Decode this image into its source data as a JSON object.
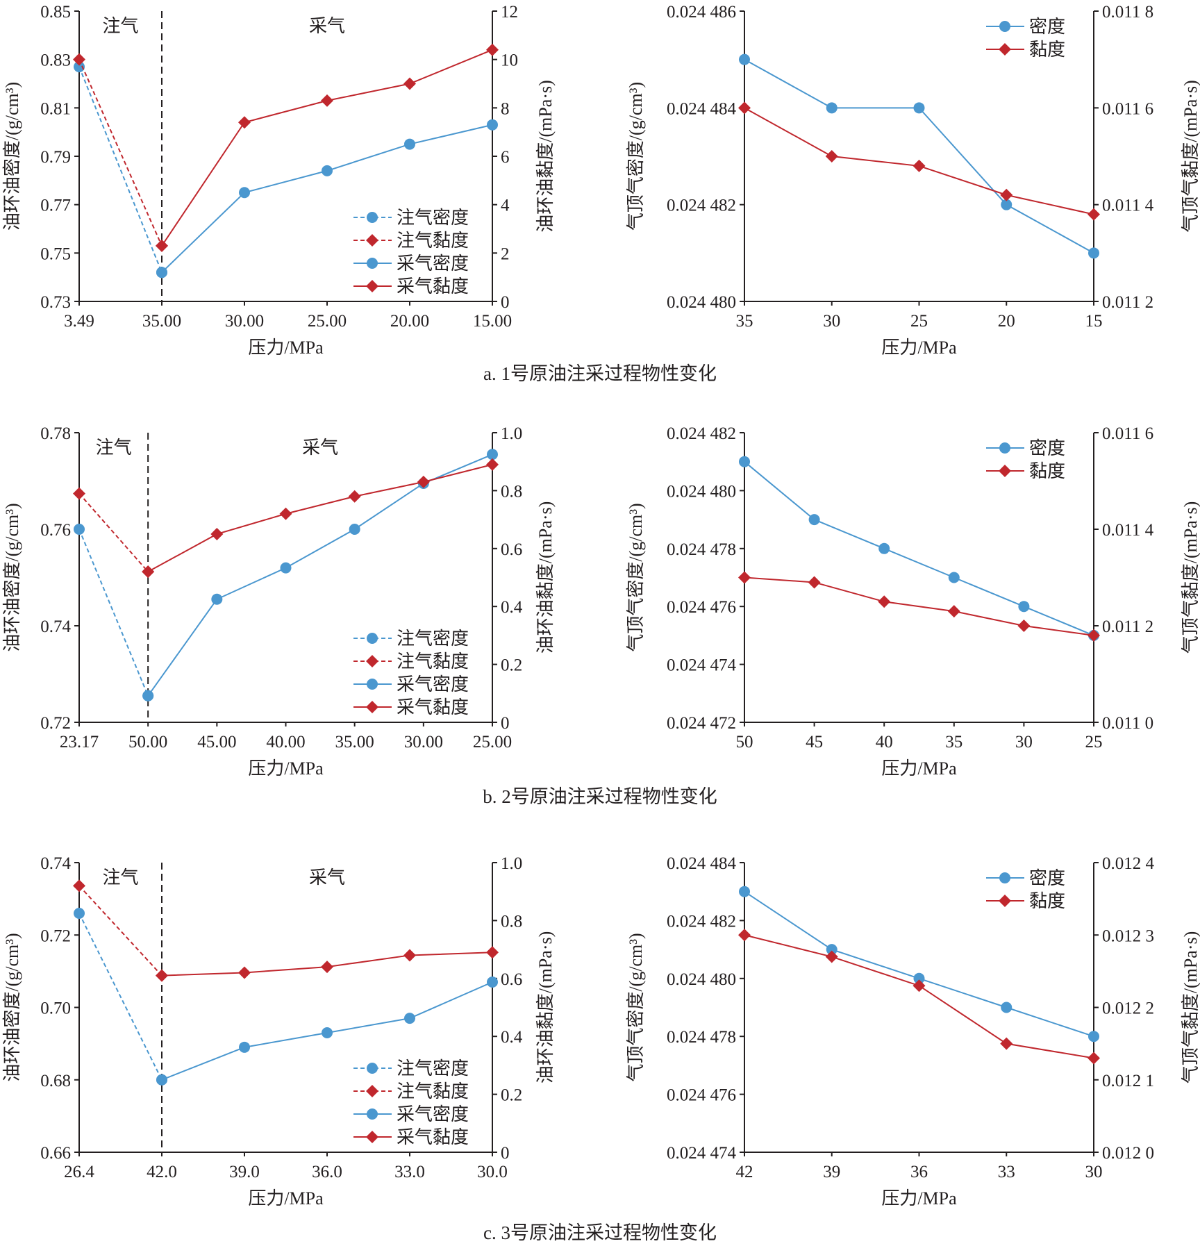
{
  "captions": [
    "a. 1号原油注采过程物性变化",
    "b. 2号原油注采过程物性变化",
    "c. 3号原油注采过程物性变化"
  ],
  "colors": {
    "density": "#4a97cf",
    "viscosity": "#c0272d",
    "axis": "#231f20"
  },
  "chart_data": [
    {
      "type": "line",
      "row": 0,
      "side": "left",
      "xlabel": "压力/MPa",
      "ylabel": "油环油密度/(g/cm³)",
      "y2label": "油环油黏度/(mPa·s)",
      "categories": [
        "3.49",
        "35.00",
        "30.00",
        "25.00",
        "20.00",
        "15.00"
      ],
      "ylim": [
        0.73,
        0.85
      ],
      "yticks": [
        0.73,
        0.75,
        0.77,
        0.79,
        0.81,
        0.83,
        0.85
      ],
      "yticklabels": [
        "0.73",
        "0.75",
        "0.77",
        "0.79",
        "0.81",
        "0.83",
        "0.85"
      ],
      "y2lim": [
        0,
        12
      ],
      "y2ticks": [
        0,
        2,
        4,
        6,
        8,
        10,
        12
      ],
      "y2ticklabels": [
        "0",
        "2",
        "4",
        "6",
        "8",
        "10",
        "12"
      ],
      "regions": [
        "注气",
        "采气"
      ],
      "divider_after_index": 1,
      "legend": "bottom-right",
      "series": [
        {
          "name": "注气密度",
          "axis": "y",
          "dashed": true,
          "marker": "circle",
          "color": "#4a97cf",
          "values": [
            0.827,
            0.742,
            null,
            null,
            null,
            null
          ]
        },
        {
          "name": "注气黏度",
          "axis": "y2",
          "dashed": true,
          "marker": "diamond",
          "color": "#c0272d",
          "values": [
            10.0,
            2.3,
            null,
            null,
            null,
            null
          ]
        },
        {
          "name": "采气密度",
          "axis": "y",
          "dashed": false,
          "marker": "circle",
          "color": "#4a97cf",
          "values": [
            null,
            0.742,
            0.775,
            0.784,
            0.795,
            0.803
          ]
        },
        {
          "name": "采气黏度",
          "axis": "y2",
          "dashed": false,
          "marker": "diamond",
          "color": "#c0272d",
          "values": [
            null,
            2.3,
            7.4,
            8.3,
            9.0,
            10.4
          ]
        }
      ]
    },
    {
      "type": "line",
      "row": 0,
      "side": "right",
      "xlabel": "压力/MPa",
      "ylabel": "气顶气密度/(g/cm³)",
      "y2label": "气顶气黏度/(mPa·s)",
      "categories": [
        "35",
        "30",
        "25",
        "20",
        "15"
      ],
      "ylim": [
        0.02448,
        0.024486
      ],
      "yticks": [
        0.02448,
        0.024482,
        0.024484,
        0.024486
      ],
      "yticklabels": [
        "0.024 480",
        "0.024 482",
        "0.024 484",
        "0.024 486"
      ],
      "y2lim": [
        0.0112,
        0.0118
      ],
      "y2ticks": [
        0.0112,
        0.0114,
        0.0116,
        0.0118
      ],
      "y2ticklabels": [
        "0.011 2",
        "0.011 4",
        "0.011 6",
        "0.011 8"
      ],
      "legend": "top-right",
      "series": [
        {
          "name": "密度",
          "axis": "y",
          "dashed": false,
          "marker": "circle",
          "color": "#4a97cf",
          "values": [
            0.024485,
            0.024484,
            0.024484,
            0.024482,
            0.024481
          ]
        },
        {
          "name": "黏度",
          "axis": "y2",
          "dashed": false,
          "marker": "diamond",
          "color": "#c0272d",
          "values": [
            0.0116,
            0.0115,
            0.01148,
            0.01142,
            0.01138
          ]
        }
      ]
    },
    {
      "type": "line",
      "row": 1,
      "side": "left",
      "xlabel": "压力/MPa",
      "ylabel": "油环油密度/(g/cm³)",
      "y2label": "油环油黏度/(mPa·s)",
      "categories": [
        "23.17",
        "50.00",
        "45.00",
        "40.00",
        "35.00",
        "30.00",
        "25.00"
      ],
      "ylim": [
        0.72,
        0.78
      ],
      "yticks": [
        0.72,
        0.74,
        0.76,
        0.78
      ],
      "yticklabels": [
        "0.72",
        "0.74",
        "0.76",
        "0.78"
      ],
      "y2lim": [
        0,
        1.0
      ],
      "y2ticks": [
        0,
        0.2,
        0.4,
        0.6,
        0.8,
        1.0
      ],
      "y2ticklabels": [
        "0",
        "0.2",
        "0.4",
        "0.6",
        "0.8",
        "1.0"
      ],
      "regions": [
        "注气",
        "采气"
      ],
      "divider_after_index": 1,
      "legend": "bottom-right",
      "series": [
        {
          "name": "注气密度",
          "axis": "y",
          "dashed": true,
          "marker": "circle",
          "color": "#4a97cf",
          "values": [
            0.76,
            0.7255,
            null,
            null,
            null,
            null,
            null
          ]
        },
        {
          "name": "注气黏度",
          "axis": "y2",
          "dashed": true,
          "marker": "diamond",
          "color": "#c0272d",
          "values": [
            0.79,
            0.52,
            null,
            null,
            null,
            null,
            null
          ]
        },
        {
          "name": "采气密度",
          "axis": "y",
          "dashed": false,
          "marker": "circle",
          "color": "#4a97cf",
          "values": [
            null,
            0.7255,
            0.7455,
            0.752,
            0.76,
            0.7695,
            0.7755
          ]
        },
        {
          "name": "采气黏度",
          "axis": "y2",
          "dashed": false,
          "marker": "diamond",
          "color": "#c0272d",
          "values": [
            null,
            0.52,
            0.65,
            0.72,
            0.78,
            0.83,
            0.89
          ]
        }
      ]
    },
    {
      "type": "line",
      "row": 1,
      "side": "right",
      "xlabel": "压力/MPa",
      "ylabel": "气顶气密度/(g/cm³)",
      "y2label": "气顶气黏度/(mPa·s)",
      "categories": [
        "50",
        "45",
        "40",
        "35",
        "30",
        "25"
      ],
      "ylim": [
        0.024472,
        0.024482
      ],
      "yticks": [
        0.024472,
        0.024474,
        0.024476,
        0.024478,
        0.02448,
        0.024482
      ],
      "yticklabels": [
        "0.024 472",
        "0.024 474",
        "0.024 476",
        "0.024 478",
        "0.024 480",
        "0.024 482"
      ],
      "y2lim": [
        0.011,
        0.0116
      ],
      "y2ticks": [
        0.011,
        0.0112,
        0.0114,
        0.0116
      ],
      "y2ticklabels": [
        "0.011 0",
        "0.011 2",
        "0.011 4",
        "0.011 6"
      ],
      "legend": "top-right",
      "series": [
        {
          "name": "密度",
          "axis": "y",
          "dashed": false,
          "marker": "circle",
          "color": "#4a97cf",
          "values": [
            0.024481,
            0.024479,
            0.024478,
            0.024477,
            0.024476,
            0.024475
          ]
        },
        {
          "name": "黏度",
          "axis": "y2",
          "dashed": false,
          "marker": "diamond",
          "color": "#c0272d",
          "values": [
            0.0113,
            0.01129,
            0.01125,
            0.01123,
            0.0112,
            0.01118
          ]
        }
      ]
    },
    {
      "type": "line",
      "row": 2,
      "side": "left",
      "xlabel": "压力/MPa",
      "ylabel": "油环油密度/(g/cm³)",
      "y2label": "油环油黏度/(mPa·s)",
      "categories": [
        "26.4",
        "42.0",
        "39.0",
        "36.0",
        "33.0",
        "30.0"
      ],
      "ylim": [
        0.66,
        0.74
      ],
      "yticks": [
        0.66,
        0.68,
        0.7,
        0.72,
        0.74
      ],
      "yticklabels": [
        "0.66",
        "0.68",
        "0.70",
        "0.72",
        "0.74"
      ],
      "y2lim": [
        0,
        1.0
      ],
      "y2ticks": [
        0,
        0.2,
        0.4,
        0.6,
        0.8,
        1.0
      ],
      "y2ticklabels": [
        "0",
        "0.2",
        "0.4",
        "0.6",
        "0.8",
        "1.0"
      ],
      "regions": [
        "注气",
        "采气"
      ],
      "divider_after_index": 1,
      "legend": "bottom-right",
      "series": [
        {
          "name": "注气密度",
          "axis": "y",
          "dashed": true,
          "marker": "circle",
          "color": "#4a97cf",
          "values": [
            0.726,
            0.68,
            null,
            null,
            null,
            null
          ]
        },
        {
          "name": "注气黏度",
          "axis": "y2",
          "dashed": true,
          "marker": "diamond",
          "color": "#c0272d",
          "values": [
            0.92,
            0.61,
            null,
            null,
            null,
            null
          ]
        },
        {
          "name": "采气密度",
          "axis": "y",
          "dashed": false,
          "marker": "circle",
          "color": "#4a97cf",
          "values": [
            null,
            0.68,
            0.689,
            0.693,
            0.697,
            0.707
          ]
        },
        {
          "name": "采气黏度",
          "axis": "y2",
          "dashed": false,
          "marker": "diamond",
          "color": "#c0272d",
          "values": [
            null,
            0.61,
            0.62,
            0.64,
            0.68,
            0.69
          ]
        }
      ]
    },
    {
      "type": "line",
      "row": 2,
      "side": "right",
      "xlabel": "压力/MPa",
      "ylabel": "气顶气密度/(g/cm³)",
      "y2label": "气顶气黏度/(mPa·s)",
      "categories": [
        "42",
        "39",
        "36",
        "33",
        "30"
      ],
      "ylim": [
        0.024474,
        0.024484
      ],
      "yticks": [
        0.024474,
        0.024476,
        0.024478,
        0.02448,
        0.024482,
        0.024484
      ],
      "yticklabels": [
        "0.024 474",
        "0.024 476",
        "0.024 478",
        "0.024 480",
        "0.024 482",
        "0.024 484"
      ],
      "y2lim": [
        0.012,
        0.0124
      ],
      "y2ticks": [
        0.012,
        0.0121,
        0.0122,
        0.0123,
        0.0124
      ],
      "y2ticklabels": [
        "0.012 0",
        "0.012 1",
        "0.012 2",
        "0.012 3",
        "0.012 4"
      ],
      "legend": "top-right",
      "series": [
        {
          "name": "密度",
          "axis": "y",
          "dashed": false,
          "marker": "circle",
          "color": "#4a97cf",
          "values": [
            0.024483,
            0.024481,
            0.02448,
            0.024479,
            0.024478
          ]
        },
        {
          "name": "黏度",
          "axis": "y2",
          "dashed": false,
          "marker": "diamond",
          "color": "#c0272d",
          "values": [
            0.0123,
            0.01227,
            0.01223,
            0.01215,
            0.01213
          ]
        }
      ]
    }
  ]
}
